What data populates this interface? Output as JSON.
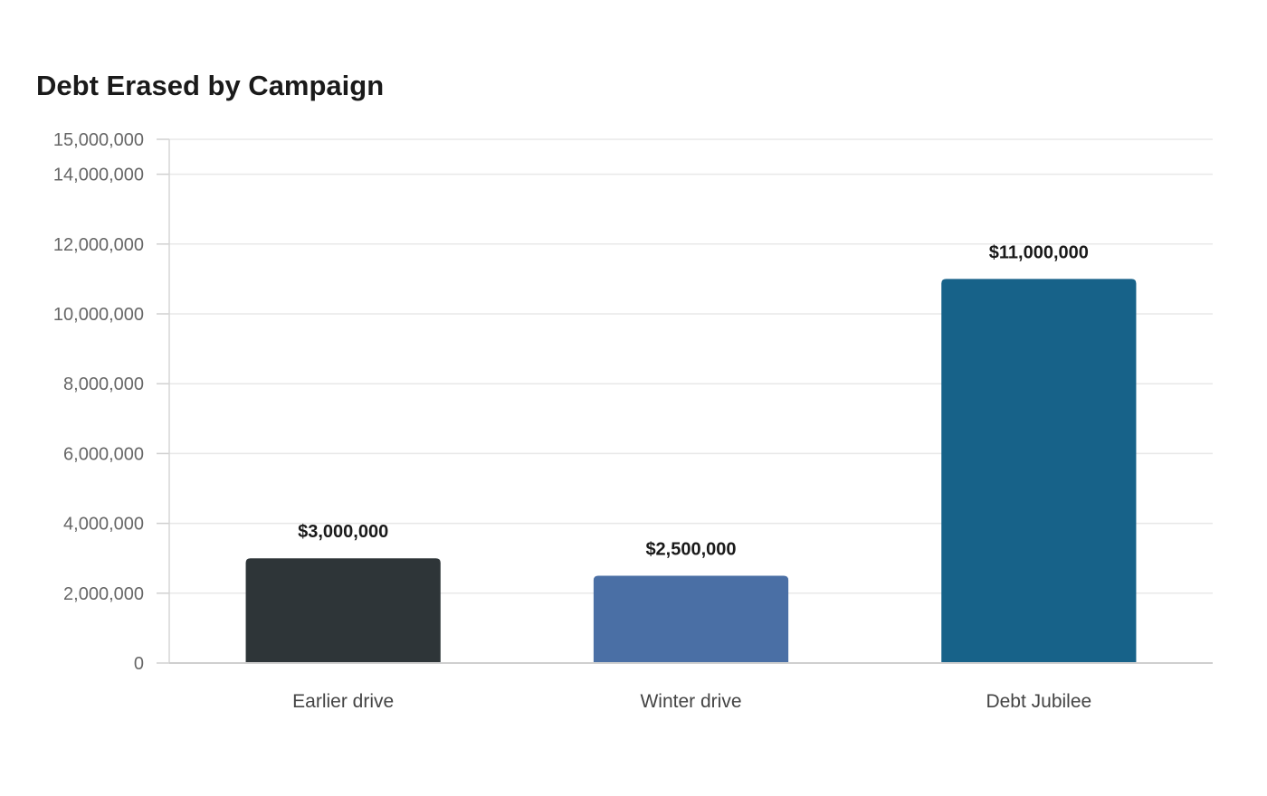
{
  "chart_data": {
    "type": "bar",
    "title": "Debt Erased by Campaign",
    "xlabel": "",
    "ylabel": "",
    "categories": [
      "Earlier drive",
      "Winter drive",
      "Debt Jubilee"
    ],
    "values": [
      3000000,
      2500000,
      11000000
    ],
    "data_labels": [
      "$3,000,000",
      "$2,500,000",
      "$11,000,000"
    ],
    "bar_colors": [
      "#2e3538",
      "#4a6fa5",
      "#176289"
    ],
    "y_ticks": [
      0,
      2000000,
      4000000,
      6000000,
      8000000,
      10000000,
      12000000,
      14000000,
      15000000
    ],
    "y_tick_labels": [
      "0",
      "2,000,000",
      "4,000,000",
      "6,000,000",
      "8,000,000",
      "10,000,000",
      "12,000,000",
      "14,000,000",
      "15,000,000"
    ],
    "ylim": [
      0,
      15000000
    ],
    "grid": true,
    "legend": "none"
  }
}
